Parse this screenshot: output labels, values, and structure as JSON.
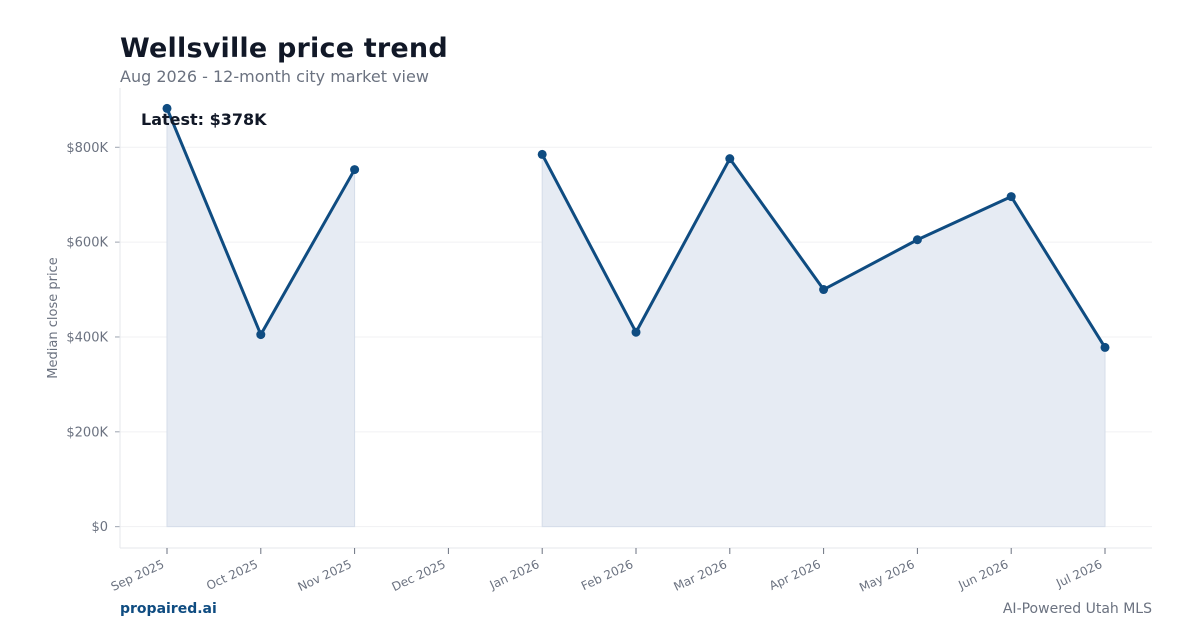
{
  "header": {
    "title": "Wellsville price trend",
    "subtitle": "Aug 2026 - 12-month city market view"
  },
  "footer": {
    "brand": "propaired.ai",
    "tagline": "AI-Powered Utah MLS"
  },
  "colors": {
    "line": "#0f4c81",
    "fill": "#e6ebf3",
    "grid": "#f0f1f3",
    "axis_text": "#6b7280"
  },
  "chart_data": {
    "type": "line",
    "categories": [
      "Sep 2025",
      "Oct 2025",
      "Nov 2025",
      "Dec 2025",
      "Jan 2026",
      "Feb 2026",
      "Mar 2026",
      "Apr 2026",
      "May 2026",
      "Jun 2026",
      "Jul 2026"
    ],
    "series": [
      {
        "values": [
          882000,
          405000,
          753000,
          null,
          785000,
          410000,
          776000,
          500000,
          605000,
          696000,
          378000
        ]
      }
    ],
    "ylabel": "Median close price",
    "xlabel": "",
    "ylim": [
      -45000,
      925000
    ],
    "yticks": [
      0,
      200000,
      400000,
      600000,
      800000
    ],
    "ytick_labels": [
      "$0",
      "$200K",
      "$400K",
      "$600K",
      "$800K"
    ],
    "annotation": "Latest: $378K",
    "area_fill": true,
    "grid": true
  }
}
